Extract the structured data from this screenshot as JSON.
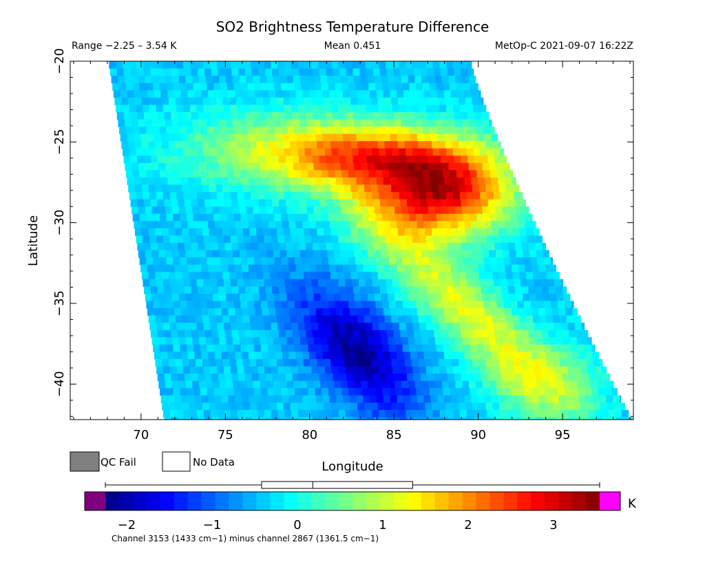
{
  "chart_data": {
    "type": "heatmap",
    "title": "SO2 Brightness Temperature Difference",
    "range_label": "Range −2.25 – 3.54 K",
    "mean_label": "Mean 0.451",
    "source_label": "MetOp-C 2021-09-07 16:22Z",
    "xlabel": "Longitude",
    "ylabel": "Latitude",
    "xlim": [
      65.8,
      99.2
    ],
    "ylim": [
      -42.2,
      -20
    ],
    "x_ticks": [
      70,
      75,
      80,
      85,
      90,
      95
    ],
    "x_tick_labels": [
      "70",
      "75",
      "80",
      "85",
      "90",
      "95"
    ],
    "y_ticks": [
      -20,
      -25,
      -30,
      -35,
      -40
    ],
    "y_tick_labels": [
      "−20",
      "−25",
      "−30",
      "−35",
      "−40"
    ],
    "swath": {
      "top_lat": -20,
      "bottom_lat": -42.2,
      "left_lon_top": 68.1,
      "left_lon_bottom": 71.4,
      "right_lon_top": 89.6,
      "right_lon_bottom": 99.2
    },
    "value_range": [
      -2.25,
      3.54
    ],
    "mean": 0.451,
    "units": "K",
    "features": [
      {
        "kind": "plume_max",
        "lon": 87.9,
        "lat": -28.0,
        "value": 3.3
      },
      {
        "kind": "plume_min",
        "lon": 83.0,
        "lat": -38.0,
        "value": -1.9
      }
    ],
    "legend": {
      "qc_fail_label": "QC Fail",
      "no_data_label": "No Data",
      "qc_fail_color": "#808080",
      "no_data_color": "#ffffff"
    },
    "colorbar": {
      "ticks": [
        -2,
        -1,
        0,
        1,
        2,
        3
      ],
      "tick_labels": [
        "−2",
        "−1",
        "0",
        "1",
        "2",
        "3"
      ],
      "vmin": -2.25,
      "vmax": 3.54,
      "under_color": "#800080",
      "over_color": "#ff00ff",
      "units_label": "K",
      "caption": "Channel 3153 (1433 cm−1) minus channel 2867 (1361.5 cm−1)",
      "boxplot": {
        "whisker_low": -2.25,
        "q1": -0.42,
        "median": 0.18,
        "q3": 1.35,
        "whisker_high": 3.54
      }
    }
  }
}
